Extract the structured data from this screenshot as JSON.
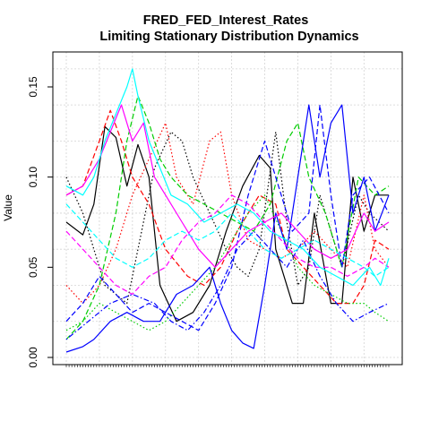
{
  "chart_data": {
    "type": "line",
    "title": "FRED_FED_Interest_Rates",
    "subtitle": "Limiting Stationary Distribution Dynamics",
    "xlabel": "",
    "ylabel": "Value",
    "ylim": [
      0.0,
      0.165
    ],
    "yticks": [
      "0.00",
      "0.05",
      "0.10",
      "0.15"
    ],
    "grid": true,
    "legend": "none",
    "x_count": 118,
    "series": [
      {
        "color": "#000000",
        "style": "solid",
        "points": [
          [
            0,
            0.075
          ],
          [
            6,
            0.068
          ],
          [
            10,
            0.085
          ],
          [
            14,
            0.128
          ],
          [
            18,
            0.122
          ],
          [
            22,
            0.095
          ],
          [
            26,
            0.118
          ],
          [
            30,
            0.1
          ],
          [
            34,
            0.04
          ],
          [
            40,
            0.02
          ],
          [
            46,
            0.025
          ],
          [
            52,
            0.04
          ],
          [
            58,
            0.07
          ],
          [
            64,
            0.095
          ],
          [
            70,
            0.112
          ],
          [
            74,
            0.105
          ],
          [
            76,
            0.06
          ],
          [
            82,
            0.03
          ],
          [
            86,
            0.03
          ],
          [
            90,
            0.08
          ],
          [
            96,
            0.03
          ],
          [
            100,
            0.03
          ],
          [
            104,
            0.1
          ],
          [
            108,
            0.07
          ],
          [
            112,
            0.09
          ],
          [
            117,
            0.09
          ]
        ]
      },
      {
        "color": "#000000",
        "style": "dotted",
        "points": [
          [
            0,
            0.1
          ],
          [
            6,
            0.08
          ],
          [
            10,
            0.06
          ],
          [
            14,
            0.04
          ],
          [
            18,
            0.035
          ],
          [
            22,
            0.03
          ],
          [
            26,
            0.06
          ],
          [
            32,
            0.105
          ],
          [
            38,
            0.125
          ],
          [
            42,
            0.12
          ],
          [
            46,
            0.1
          ],
          [
            52,
            0.08
          ],
          [
            58,
            0.06
          ],
          [
            62,
            0.05
          ],
          [
            66,
            0.045
          ],
          [
            70,
            0.06
          ],
          [
            76,
            0.125
          ],
          [
            80,
            0.075
          ],
          [
            84,
            0.04
          ],
          [
            88,
            0.05
          ],
          [
            92,
            0.09
          ],
          [
            96,
            0.07
          ],
          [
            100,
            0.05
          ],
          [
            106,
            0.09
          ],
          [
            110,
            0.08
          ],
          [
            117,
            0.07
          ]
        ]
      },
      {
        "color": "#FF0000",
        "style": "dashed",
        "points": [
          [
            0,
            0.09
          ],
          [
            6,
            0.095
          ],
          [
            12,
            0.12
          ],
          [
            16,
            0.137
          ],
          [
            20,
            0.12
          ],
          [
            24,
            0.1
          ],
          [
            30,
            0.085
          ],
          [
            36,
            0.06
          ],
          [
            44,
            0.045
          ],
          [
            50,
            0.04
          ],
          [
            56,
            0.05
          ],
          [
            62,
            0.07
          ],
          [
            70,
            0.09
          ],
          [
            76,
            0.085
          ],
          [
            80,
            0.06
          ],
          [
            86,
            0.05
          ],
          [
            92,
            0.04
          ],
          [
            98,
            0.03
          ],
          [
            104,
            0.03
          ],
          [
            108,
            0.04
          ],
          [
            112,
            0.065
          ],
          [
            117,
            0.06
          ]
        ]
      },
      {
        "color": "#FF0000",
        "style": "dotted",
        "points": [
          [
            0,
            0.04
          ],
          [
            6,
            0.03
          ],
          [
            12,
            0.04
          ],
          [
            18,
            0.06
          ],
          [
            24,
            0.09
          ],
          [
            30,
            0.11
          ],
          [
            36,
            0.13
          ],
          [
            40,
            0.1
          ],
          [
            46,
            0.085
          ],
          [
            52,
            0.12
          ],
          [
            56,
            0.125
          ],
          [
            60,
            0.09
          ],
          [
            66,
            0.065
          ],
          [
            72,
            0.06
          ],
          [
            78,
            0.055
          ],
          [
            84,
            0.06
          ],
          [
            90,
            0.07
          ],
          [
            96,
            0.06
          ],
          [
            102,
            0.05
          ],
          [
            108,
            0.09
          ],
          [
            112,
            0.06
          ],
          [
            117,
            0.05
          ]
        ]
      },
      {
        "color": "#00CD00",
        "style": "dashed",
        "points": [
          [
            0,
            0.01
          ],
          [
            6,
            0.02
          ],
          [
            12,
            0.04
          ],
          [
            18,
            0.08
          ],
          [
            22,
            0.12
          ],
          [
            26,
            0.145
          ],
          [
            30,
            0.13
          ],
          [
            34,
            0.11
          ],
          [
            38,
            0.1
          ],
          [
            44,
            0.09
          ],
          [
            50,
            0.085
          ],
          [
            56,
            0.08
          ],
          [
            62,
            0.075
          ],
          [
            68,
            0.07
          ],
          [
            74,
            0.085
          ],
          [
            80,
            0.12
          ],
          [
            84,
            0.13
          ],
          [
            88,
            0.1
          ],
          [
            94,
            0.08
          ],
          [
            100,
            0.05
          ],
          [
            106,
            0.1
          ],
          [
            112,
            0.09
          ],
          [
            117,
            0.095
          ]
        ]
      },
      {
        "color": "#00CD00",
        "style": "dotted",
        "points": [
          [
            0,
            0.015
          ],
          [
            6,
            0.02
          ],
          [
            12,
            0.03
          ],
          [
            18,
            0.025
          ],
          [
            24,
            0.02
          ],
          [
            30,
            0.015
          ],
          [
            36,
            0.02
          ],
          [
            42,
            0.03
          ],
          [
            48,
            0.04
          ],
          [
            54,
            0.05
          ],
          [
            60,
            0.065
          ],
          [
            66,
            0.08
          ],
          [
            72,
            0.09
          ],
          [
            78,
            0.07
          ],
          [
            84,
            0.05
          ],
          [
            90,
            0.04
          ],
          [
            96,
            0.035
          ],
          [
            102,
            0.03
          ],
          [
            108,
            0.03
          ],
          [
            112,
            0.025
          ],
          [
            117,
            0.02
          ]
        ]
      },
      {
        "color": "#0000FF",
        "style": "solid",
        "points": [
          [
            0,
            0.003
          ],
          [
            6,
            0.006
          ],
          [
            10,
            0.01
          ],
          [
            16,
            0.02
          ],
          [
            22,
            0.025
          ],
          [
            28,
            0.02
          ],
          [
            34,
            0.02
          ],
          [
            40,
            0.035
          ],
          [
            46,
            0.04
          ],
          [
            52,
            0.05
          ],
          [
            56,
            0.03
          ],
          [
            60,
            0.015
          ],
          [
            64,
            0.008
          ],
          [
            68,
            0.005
          ],
          [
            72,
            0.04
          ],
          [
            76,
            0.08
          ],
          [
            80,
            0.06
          ],
          [
            84,
            0.1
          ],
          [
            88,
            0.14
          ],
          [
            92,
            0.1
          ],
          [
            96,
            0.13
          ],
          [
            100,
            0.14
          ],
          [
            104,
            0.08
          ],
          [
            108,
            0.1
          ],
          [
            112,
            0.07
          ],
          [
            117,
            0.09
          ]
        ]
      },
      {
        "color": "#0000FF",
        "style": "dashed",
        "points": [
          [
            0,
            0.02
          ],
          [
            6,
            0.03
          ],
          [
            12,
            0.045
          ],
          [
            18,
            0.035
          ],
          [
            24,
            0.025
          ],
          [
            30,
            0.03
          ],
          [
            36,
            0.025
          ],
          [
            42,
            0.02
          ],
          [
            48,
            0.015
          ],
          [
            54,
            0.03
          ],
          [
            60,
            0.05
          ],
          [
            66,
            0.09
          ],
          [
            72,
            0.12
          ],
          [
            76,
            0.1
          ],
          [
            82,
            0.07
          ],
          [
            88,
            0.08
          ],
          [
            92,
            0.14
          ],
          [
            96,
            0.09
          ],
          [
            100,
            0.05
          ],
          [
            104,
            0.09
          ],
          [
            110,
            0.1
          ],
          [
            117,
            0.08
          ]
        ]
      },
      {
        "color": "#0000FF",
        "style": "dotdash",
        "points": [
          [
            0,
            0.01
          ],
          [
            8,
            0.02
          ],
          [
            16,
            0.03
          ],
          [
            24,
            0.035
          ],
          [
            32,
            0.03
          ],
          [
            38,
            0.02
          ],
          [
            44,
            0.015
          ],
          [
            50,
            0.025
          ],
          [
            56,
            0.04
          ],
          [
            62,
            0.06
          ],
          [
            68,
            0.07
          ],
          [
            74,
            0.06
          ],
          [
            80,
            0.05
          ],
          [
            86,
            0.065
          ],
          [
            92,
            0.045
          ],
          [
            98,
            0.03
          ],
          [
            104,
            0.02
          ],
          [
            110,
            0.025
          ],
          [
            117,
            0.03
          ]
        ]
      },
      {
        "color": "#FF00FF",
        "style": "solid",
        "points": [
          [
            0,
            0.09
          ],
          [
            6,
            0.095
          ],
          [
            12,
            0.11
          ],
          [
            16,
            0.125
          ],
          [
            20,
            0.14
          ],
          [
            24,
            0.12
          ],
          [
            28,
            0.13
          ],
          [
            32,
            0.1
          ],
          [
            36,
            0.09
          ],
          [
            42,
            0.075
          ],
          [
            48,
            0.06
          ],
          [
            54,
            0.05
          ],
          [
            60,
            0.06
          ],
          [
            66,
            0.07
          ],
          [
            72,
            0.075
          ],
          [
            78,
            0.08
          ],
          [
            84,
            0.07
          ],
          [
            90,
            0.06
          ],
          [
            96,
            0.055
          ],
          [
            102,
            0.06
          ],
          [
            108,
            0.08
          ],
          [
            112,
            0.07
          ],
          [
            117,
            0.075
          ]
        ]
      },
      {
        "color": "#FF00FF",
        "style": "dashed",
        "points": [
          [
            0,
            0.07
          ],
          [
            6,
            0.06
          ],
          [
            12,
            0.05
          ],
          [
            18,
            0.04
          ],
          [
            24,
            0.035
          ],
          [
            30,
            0.045
          ],
          [
            36,
            0.05
          ],
          [
            42,
            0.065
          ],
          [
            48,
            0.075
          ],
          [
            54,
            0.08
          ],
          [
            60,
            0.09
          ],
          [
            66,
            0.085
          ],
          [
            72,
            0.075
          ],
          [
            78,
            0.065
          ],
          [
            84,
            0.055
          ],
          [
            90,
            0.05
          ],
          [
            96,
            0.05
          ],
          [
            102,
            0.045
          ],
          [
            108,
            0.05
          ],
          [
            112,
            0.055
          ],
          [
            117,
            0.05
          ]
        ]
      },
      {
        "color": "#00FFFF",
        "style": "solid",
        "points": [
          [
            0,
            0.095
          ],
          [
            6,
            0.09
          ],
          [
            10,
            0.1
          ],
          [
            14,
            0.12
          ],
          [
            18,
            0.135
          ],
          [
            22,
            0.15
          ],
          [
            24,
            0.16
          ],
          [
            26,
            0.145
          ],
          [
            30,
            0.12
          ],
          [
            34,
            0.105
          ],
          [
            38,
            0.09
          ],
          [
            44,
            0.085
          ],
          [
            50,
            0.075
          ],
          [
            56,
            0.08
          ],
          [
            62,
            0.085
          ],
          [
            68,
            0.08
          ],
          [
            74,
            0.07
          ],
          [
            80,
            0.065
          ],
          [
            86,
            0.06
          ],
          [
            92,
            0.05
          ],
          [
            98,
            0.045
          ],
          [
            104,
            0.04
          ],
          [
            110,
            0.05
          ],
          [
            114,
            0.04
          ],
          [
            117,
            0.055
          ]
        ]
      },
      {
        "color": "#00FFFF",
        "style": "dashed",
        "points": [
          [
            0,
            0.085
          ],
          [
            6,
            0.075
          ],
          [
            12,
            0.065
          ],
          [
            18,
            0.055
          ],
          [
            24,
            0.05
          ],
          [
            30,
            0.055
          ],
          [
            36,
            0.065
          ],
          [
            42,
            0.07
          ],
          [
            48,
            0.065
          ],
          [
            54,
            0.07
          ],
          [
            60,
            0.08
          ],
          [
            66,
            0.07
          ],
          [
            72,
            0.06
          ],
          [
            78,
            0.055
          ],
          [
            84,
            0.06
          ],
          [
            90,
            0.065
          ],
          [
            96,
            0.06
          ],
          [
            102,
            0.055
          ],
          [
            108,
            0.05
          ],
          [
            112,
            0.045
          ],
          [
            117,
            0.05
          ]
        ]
      }
    ]
  }
}
